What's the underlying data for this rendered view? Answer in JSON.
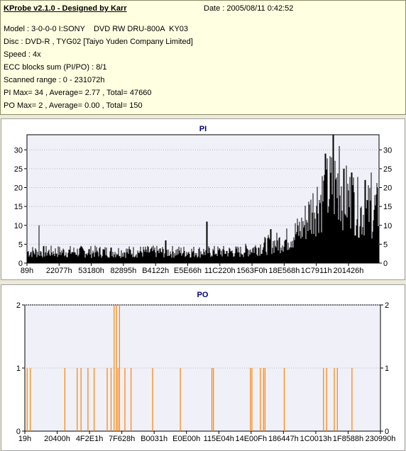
{
  "header": {
    "title": "KProbe v2.1.0 - Designed by Karr",
    "date": "Date : 2005/08/11 0:42:52",
    "lines": [
      "Model : 3-0-0-0 I:SONY    DVD RW DRU-800A  KY03",
      "Disc : DVD-R , TYG02 [Taiyo Yuden Company Limited]",
      "Speed : 4x",
      "ECC blocks sum (PI/PO) : 8/1",
      "Scanned range : 0 - 231072h",
      "PI Max= 34 , Average= 2.77 , Total= 47660",
      "PO Max= 2 , Average= 0.00 , Total= 150"
    ]
  },
  "colors": {
    "pi_bars": "#000000",
    "po_bars": "#ff8000",
    "plot_bg": "#f0f0f8",
    "grid": "#b8b8c8"
  },
  "chart_data": [
    {
      "type": "bar",
      "title": "PI",
      "ylim": [
        0,
        34
      ],
      "yticks": [
        0,
        5,
        10,
        15,
        20,
        25,
        30
      ],
      "xtick_labels": [
        "89h",
        "22077h",
        "53180h",
        "82895h",
        "B4122h",
        "E5E66h",
        "11C220h",
        "1563F0h",
        "18E568h",
        "1C7911h",
        "201426h"
      ],
      "x_range": [
        0,
        231072
      ],
      "series": [
        {
          "values_profile": [
            [
              0,
              3
            ],
            [
              20000,
              3
            ],
            [
              40000,
              3
            ],
            [
              60000,
              3
            ],
            [
              80000,
              3
            ],
            [
              100000,
              3
            ],
            [
              120000,
              3
            ],
            [
              140000,
              3
            ],
            [
              150000,
              4
            ],
            [
              160000,
              5
            ],
            [
              170000,
              6
            ],
            [
              180000,
              9
            ],
            [
              190000,
              16
            ],
            [
              200000,
              20
            ],
            [
              205000,
              21
            ],
            [
              210000,
              17
            ],
            [
              215000,
              16
            ],
            [
              220000,
              13
            ],
            [
              225000,
              14
            ],
            [
              231072,
              14
            ]
          ],
          "peaks": [
            [
              8000,
              10
            ],
            [
              91000,
              6
            ],
            [
              118000,
              11
            ],
            [
              160000,
              9
            ],
            [
              196000,
              29
            ],
            [
              201000,
              34
            ],
            [
              205000,
              31
            ],
            [
              208000,
              25
            ],
            [
              213000,
              24
            ],
            [
              222000,
              22
            ],
            [
              226000,
              24
            ]
          ]
        }
      ]
    },
    {
      "type": "bar",
      "title": "PO",
      "ylim": [
        0,
        2
      ],
      "yticks": [
        0,
        1,
        2
      ],
      "xtick_labels": [
        "19h",
        "20400h",
        "4F2E1h",
        "7F628h",
        "B0031h",
        "E0E00h",
        "115E04h",
        "14E00Fh",
        "186447h",
        "1C0013h",
        "1F8588h",
        "230990h"
      ],
      "x_range": [
        0,
        230990
      ],
      "series": [
        {
          "spikes": [
            [
              1500,
              1
            ],
            [
              3500,
              1
            ],
            [
              26000,
              1
            ],
            [
              34000,
              1
            ],
            [
              36500,
              1
            ],
            [
              41000,
              1
            ],
            [
              45000,
              1
            ],
            [
              53500,
              1
            ],
            [
              56000,
              1
            ],
            [
              58000,
              2
            ],
            [
              59500,
              2
            ],
            [
              60500,
              1
            ],
            [
              61500,
              2
            ],
            [
              65000,
              1
            ],
            [
              69000,
              1
            ],
            [
              83000,
              1
            ],
            [
              101000,
              1
            ],
            [
              121500,
              1
            ],
            [
              122500,
              1
            ],
            [
              146500,
              1
            ],
            [
              147500,
              1
            ],
            [
              153000,
              1
            ],
            [
              155000,
              1
            ],
            [
              156000,
              1
            ],
            [
              168500,
              1
            ],
            [
              194000,
              1
            ],
            [
              196000,
              1
            ],
            [
              201000,
              1
            ],
            [
              203000,
              1
            ],
            [
              212500,
              1
            ]
          ]
        }
      ]
    }
  ]
}
